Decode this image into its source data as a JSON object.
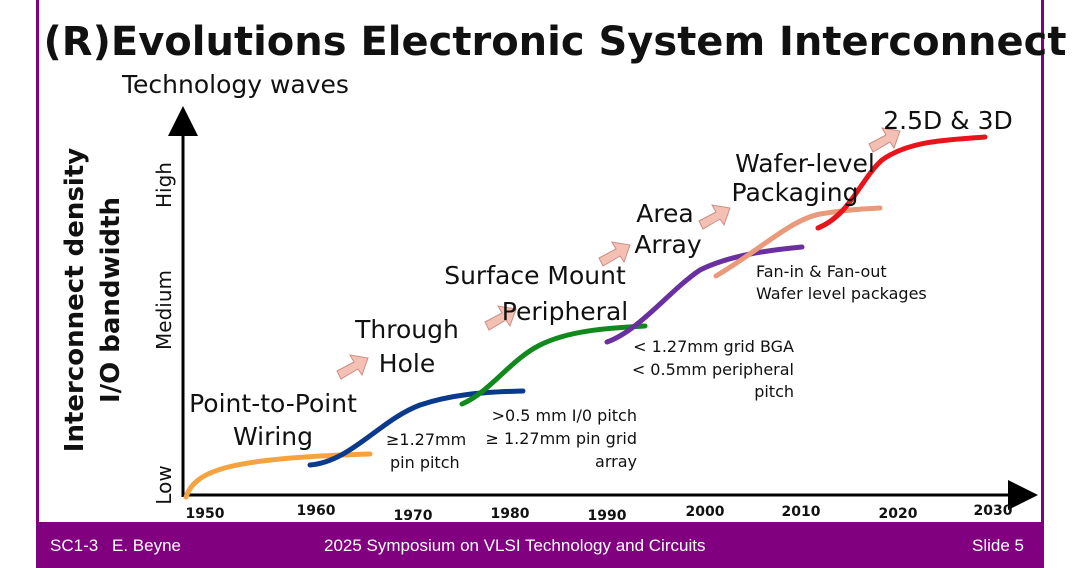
{
  "title": "(R)Evolutions Electronic System Interconnect",
  "subtitle": "Technology waves",
  "y_axis": {
    "label_line1": "Interconnect density",
    "label_line2": "I/O bandwidth",
    "levels": [
      "Low",
      "Medium",
      "High"
    ]
  },
  "x_axis": {
    "ticks": [
      "1950",
      "1960",
      "1970",
      "1980",
      "1990",
      "2000",
      "2010",
      "2020",
      "2030"
    ]
  },
  "waves": [
    {
      "name_lines": [
        "Point-to-Point",
        "Wiring"
      ],
      "color": "#f4a340",
      "note_lines": [
        "≥1.27mm",
        "pin pitch"
      ]
    },
    {
      "name_lines": [
        "Through",
        "Hole"
      ],
      "color": "#0a3a8c",
      "note_lines": [
        ">0.5 mm I/0 pitch",
        "≥ 1.27mm pin grid",
        "array"
      ]
    },
    {
      "name_lines": [
        "Surface Mount",
        "Peripheral"
      ],
      "color": "#12891c",
      "note_lines": [
        "< 1.27mm grid BGA",
        "< 0.5mm peripheral",
        "pitch"
      ]
    },
    {
      "name_lines": [
        "Area",
        "Array"
      ],
      "color": "#6a2fa0",
      "note_lines": [
        "Fan-in & Fan-out",
        "Wafer level packages"
      ]
    },
    {
      "name_lines": [
        "Wafer-level",
        "Packaging"
      ],
      "color": "#e89a7a"
    },
    {
      "name_lines": [
        "2.5D & 3D"
      ],
      "color": "#e8141c"
    }
  ],
  "arrow_color": "#f4c0b4",
  "footer": {
    "session": "SC1-3",
    "author": "E. Beyne",
    "event": "2025 Symposium on VLSI Technology and Circuits",
    "slide": "Slide 5"
  },
  "brand_color": "#800080"
}
